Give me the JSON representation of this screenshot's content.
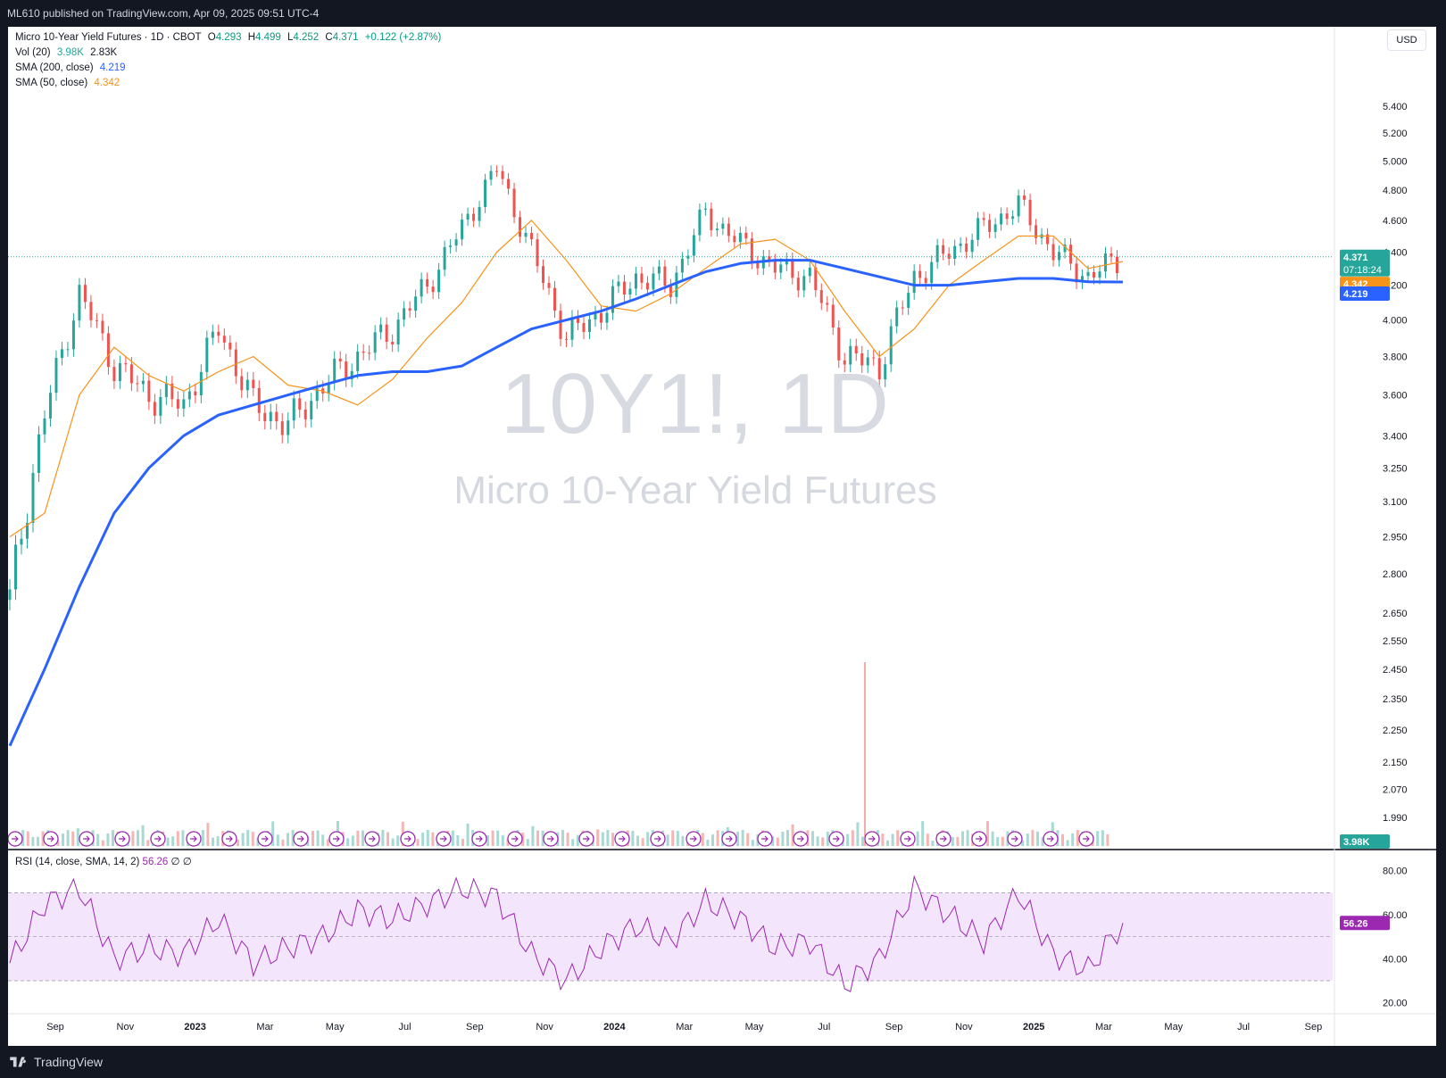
{
  "header": {
    "published": "ML610 published on TradingView.com, Apr 09, 2025 09:51 UTC-4"
  },
  "footer": {
    "brand": "TradingView"
  },
  "legend": {
    "title": "Micro 10-Year Yield Futures · 1D · CBOT",
    "o_label": "O",
    "o": "4.293",
    "h_label": "H",
    "h": "4.499",
    "l_label": "L",
    "l": "4.252",
    "c_label": "C",
    "c": "4.371",
    "change": "+0.122 (+2.87%)",
    "vol_label": "Vol (20)",
    "vol_val": "3.98K",
    "vol_ma": "2.83K",
    "sma200_label": "SMA (200, close)",
    "sma200_val": "4.219",
    "sma50_label": "SMA (50, close)",
    "sma50_val": "4.342",
    "rsi_label": "RSI (14, close, SMA, 14, 2)",
    "rsi_val": "56.26",
    "rsi_extra": "∅ ∅"
  },
  "currency": "USD",
  "watermark": {
    "symbol": "10Y1!, 1D",
    "description": "Micro 10-Year Yield Futures"
  },
  "price_badges": {
    "last": "4.371",
    "countdown": "07:18:24",
    "sma50": "4.342",
    "sma200": "4.219",
    "volume": "3.98K",
    "rsi": "56.26"
  },
  "colors": {
    "up": "#26a69a",
    "down": "#ef5350",
    "sma50": "#f7931a",
    "sma200": "#2962ff",
    "rsi": "#9c27b0",
    "rsi_band": "#f3e5fb",
    "last": "#26a69a",
    "vol_badge": "#26a69a"
  },
  "chart_data": [
    {
      "type": "line",
      "title": "Micro 10-Year Yield Futures · 1D · CBOT",
      "ylim": [
        1.95,
        5.6
      ],
      "yscale": "log",
      "y_ticks": [
        "5.400",
        "5.200",
        "5.000",
        "4.800",
        "4.600",
        "4.400",
        "4.200",
        "4.000",
        "3.800",
        "3.600",
        "3.400",
        "3.250",
        "3.100",
        "2.950",
        "2.800",
        "2.650",
        "2.550",
        "2.450",
        "2.350",
        "2.250",
        "2.150",
        "2.070",
        "1.990"
      ],
      "x_ticks": [
        "Sep",
        "Nov",
        "2023",
        "Mar",
        "May",
        "Jul",
        "Sep",
        "Nov",
        "2024",
        "Mar",
        "May",
        "Jul",
        "Sep",
        "Nov",
        "2025",
        "Mar",
        "May",
        "Jul",
        "Sep"
      ],
      "x": [
        "2022-08",
        "2022-09",
        "2022-10",
        "2022-11",
        "2022-12",
        "2023-01",
        "2023-02",
        "2023-03",
        "2023-04",
        "2023-05",
        "2023-06",
        "2023-07",
        "2023-08",
        "2023-09",
        "2023-10",
        "2023-11",
        "2023-12",
        "2024-01",
        "2024-02",
        "2024-03",
        "2024-04",
        "2024-05",
        "2024-06",
        "2024-07",
        "2024-08",
        "2024-09",
        "2024-10",
        "2024-11",
        "2024-12",
        "2025-01",
        "2025-02",
        "2025-03",
        "2025-04"
      ],
      "series": [
        {
          "name": "Micro 10-Year Yield Futures",
          "values": [
            2.7,
            3.5,
            4.15,
            3.75,
            3.6,
            3.55,
            3.95,
            3.55,
            3.45,
            3.65,
            3.8,
            3.95,
            4.2,
            4.55,
            4.95,
            4.4,
            3.9,
            4.05,
            4.25,
            4.2,
            4.65,
            4.45,
            4.3,
            4.25,
            3.8,
            3.75,
            4.25,
            4.4,
            4.55,
            4.7,
            4.4,
            4.25,
            4.371
          ]
        },
        {
          "name": "SMA (50, close)",
          "values": [
            2.95,
            3.05,
            3.6,
            3.85,
            3.7,
            3.62,
            3.72,
            3.8,
            3.65,
            3.62,
            3.55,
            3.68,
            3.9,
            4.1,
            4.4,
            4.6,
            4.35,
            4.08,
            4.05,
            4.15,
            4.3,
            4.45,
            4.48,
            4.35,
            4.05,
            3.8,
            3.95,
            4.2,
            4.35,
            4.5,
            4.5,
            4.3,
            4.342
          ]
        },
        {
          "name": "SMA (200, close)",
          "values": [
            2.2,
            2.45,
            2.75,
            3.05,
            3.25,
            3.4,
            3.5,
            3.55,
            3.6,
            3.65,
            3.7,
            3.72,
            3.72,
            3.75,
            3.85,
            3.95,
            4.0,
            4.05,
            4.12,
            4.2,
            4.28,
            4.33,
            4.35,
            4.35,
            4.3,
            4.25,
            4.2,
            4.2,
            4.22,
            4.24,
            4.24,
            4.22,
            4.219
          ]
        }
      ]
    },
    {
      "type": "line",
      "title": "RSI (14, close, SMA, 14, 2)",
      "ylim": [
        15,
        88
      ],
      "y_ticks": [
        "80.00",
        "60.00",
        "40.00",
        "20.00"
      ],
      "bands": [
        30,
        50,
        70
      ],
      "x": [
        "2022-08",
        "2022-09",
        "2022-10",
        "2022-11",
        "2022-12",
        "2023-01",
        "2023-02",
        "2023-03",
        "2023-04",
        "2023-05",
        "2023-06",
        "2023-07",
        "2023-08",
        "2023-09",
        "2023-10",
        "2023-11",
        "2023-12",
        "2024-01",
        "2024-02",
        "2024-03",
        "2024-04",
        "2024-05",
        "2024-06",
        "2024-07",
        "2024-08",
        "2024-09",
        "2024-10",
        "2024-11",
        "2024-12",
        "2025-01",
        "2025-02",
        "2025-03",
        "2025-04"
      ],
      "series": [
        {
          "name": "RSI",
          "values": [
            38,
            65,
            72,
            40,
            45,
            42,
            58,
            38,
            45,
            50,
            62,
            58,
            65,
            72,
            68,
            42,
            30,
            45,
            55,
            48,
            66,
            58,
            45,
            48,
            28,
            40,
            72,
            60,
            48,
            70,
            42,
            35,
            56.26
          ]
        }
      ]
    }
  ]
}
